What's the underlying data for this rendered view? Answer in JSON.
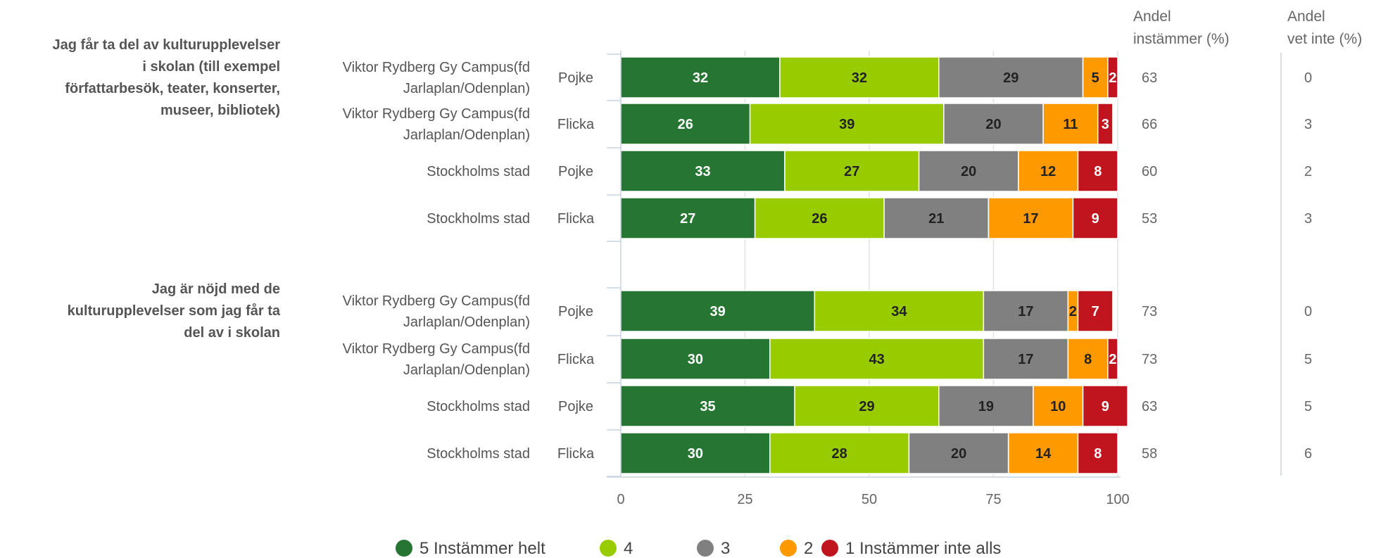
{
  "chart_data": {
    "type": "bar",
    "orientation": "horizontal",
    "stacked": true,
    "xlim": [
      0,
      100
    ],
    "xticks": [
      0,
      25,
      50,
      75,
      100
    ],
    "grid": true,
    "legend_position": "bottom",
    "column_headers": {
      "agree": [
        "Andel",
        "instämmer (%)"
      ],
      "dontknow": [
        "Andel",
        "vet inte (%)"
      ]
    },
    "series": [
      {
        "name": "5 Instämmer helt",
        "color": "#267532",
        "text_color": "#ffffff"
      },
      {
        "name": "4",
        "color": "#99cc00",
        "text_color": "#222222"
      },
      {
        "name": "3",
        "color": "#808080",
        "text_color": "#222222"
      },
      {
        "name": "2",
        "color": "#ff9900",
        "text_color": "#222222"
      },
      {
        "name": "1 Instämmer inte alls",
        "color": "#c0141e",
        "text_color": "#ffffff"
      }
    ],
    "questions": [
      {
        "label": [
          "Jag får ta del av kulturupplevelser",
          "i skolan (till exempel",
          "författarbesök, teater, konserter,",
          "museer, bibliotek)"
        ],
        "rows": [
          {
            "group": [
              "Viktor Rydberg Gy Campus(fd",
              "Jarlaplan/Odenplan)"
            ],
            "sub": "Pojke",
            "values": [
              32,
              32,
              29,
              5,
              2
            ],
            "agree": "63",
            "dontknow": "0"
          },
          {
            "group": [
              "Viktor Rydberg Gy Campus(fd",
              "Jarlaplan/Odenplan)"
            ],
            "sub": "Flicka",
            "values": [
              26,
              39,
              20,
              11,
              3
            ],
            "agree": "66",
            "dontknow": "3"
          },
          {
            "group": [
              "Stockholms stad"
            ],
            "sub": "Pojke",
            "values": [
              33,
              27,
              20,
              12,
              8
            ],
            "agree": "60",
            "dontknow": "2"
          },
          {
            "group": [
              "Stockholms stad"
            ],
            "sub": "Flicka",
            "values": [
              27,
              26,
              21,
              17,
              9
            ],
            "agree": "53",
            "dontknow": "3"
          }
        ]
      },
      {
        "label": [
          "Jag är nöjd med de",
          "kulturupplevelser som jag får ta",
          "del av i skolan"
        ],
        "rows": [
          {
            "group": [
              "Viktor Rydberg Gy Campus(fd",
              "Jarlaplan/Odenplan)"
            ],
            "sub": "Pojke",
            "values": [
              39,
              34,
              17,
              2,
              7
            ],
            "agree": "73",
            "dontknow": "0"
          },
          {
            "group": [
              "Viktor Rydberg Gy Campus(fd",
              "Jarlaplan/Odenplan)"
            ],
            "sub": "Flicka",
            "values": [
              30,
              43,
              17,
              8,
              2
            ],
            "agree": "73",
            "dontknow": "5"
          },
          {
            "group": [
              "Stockholms stad"
            ],
            "sub": "Pojke",
            "values": [
              35,
              29,
              19,
              10,
              9
            ],
            "agree": "63",
            "dontknow": "5"
          },
          {
            "group": [
              "Stockholms stad"
            ],
            "sub": "Flicka",
            "values": [
              30,
              28,
              20,
              14,
              8
            ],
            "agree": "58",
            "dontknow": "6"
          }
        ]
      }
    ]
  }
}
